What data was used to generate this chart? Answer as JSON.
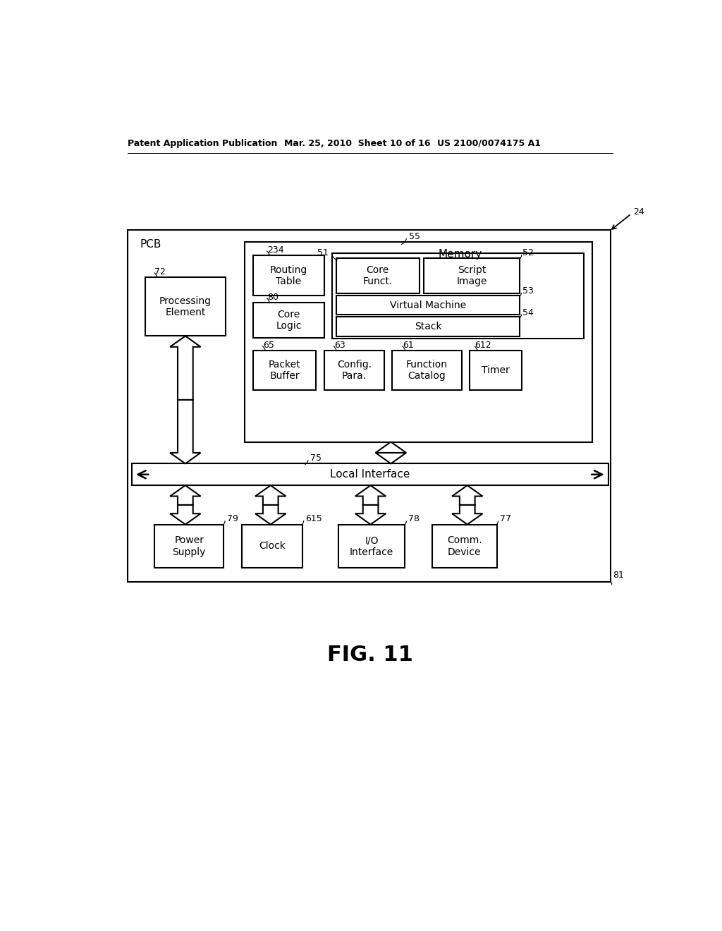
{
  "bg_color": "#ffffff",
  "header_left": "Patent Application Publication",
  "header_mid": "Mar. 25, 2010  Sheet 10 of 16",
  "header_right": "US 2100/0074175 A1",
  "fig_label": "FIG. 11",
  "pcb_label": "PCB",
  "pcb_ref": "24",
  "pcb_inner_ref": "81",
  "memory_label": "Memory",
  "memory_ref": "55",
  "routing_table_label": "Routing\nTable",
  "routing_table_ref": "234",
  "core_logic_label": "Core\nLogic",
  "core_logic_ref": "80",
  "core_funct_label": "Core\nFunct.",
  "core_funct_ref": "51",
  "script_image_label": "Script\nImage",
  "script_image_ref": "52",
  "virtual_machine_label": "Virtual Machine",
  "virtual_machine_ref": "53",
  "stack_label": "Stack",
  "stack_ref": "54",
  "packet_buffer_label": "Packet\nBuffer",
  "packet_buffer_ref": "65",
  "config_para_label": "Config.\nPara.",
  "config_para_ref": "63",
  "function_catalog_label": "Function\nCatalog",
  "function_catalog_ref": "61",
  "timer_label": "Timer",
  "timer_ref": "612",
  "processing_element_label": "Processing\nElement",
  "processing_element_ref": "72",
  "local_interface_label": "Local Interface",
  "local_interface_ref": "75",
  "power_supply_label": "Power\nSupply",
  "power_supply_ref": "79",
  "clock_label": "Clock",
  "clock_ref": "615",
  "io_interface_label": "I/O\nInterface",
  "io_interface_ref": "78",
  "comm_device_label": "Comm.\nDevice",
  "comm_device_ref": "77"
}
